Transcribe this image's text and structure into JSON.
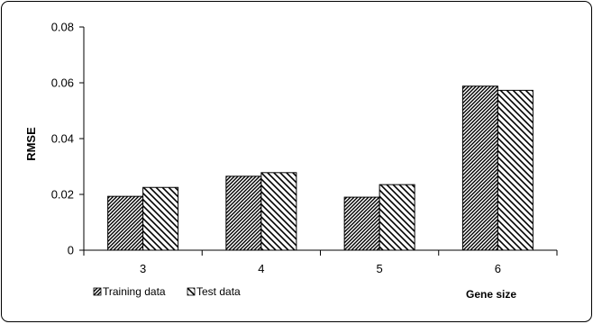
{
  "chart_data": {
    "type": "bar",
    "categories": [
      "3",
      "4",
      "5",
      "6"
    ],
    "series": [
      {
        "name": "Training data",
        "values": [
          0.0193,
          0.0265,
          0.019,
          0.0588
        ],
        "pattern": "hatch-forward-dense"
      },
      {
        "name": "Test data",
        "values": [
          0.0225,
          0.0278,
          0.0235,
          0.0573
        ],
        "pattern": "hatch-back-sparse"
      }
    ],
    "title": "",
    "xlabel": "Gene size",
    "ylabel": "RMSE",
    "ylim": [
      0,
      0.08
    ],
    "yticks": [
      "0",
      "0.02",
      "0.04",
      "0.06",
      "0.08"
    ],
    "grid": false,
    "legend_position": "bottom-left"
  }
}
